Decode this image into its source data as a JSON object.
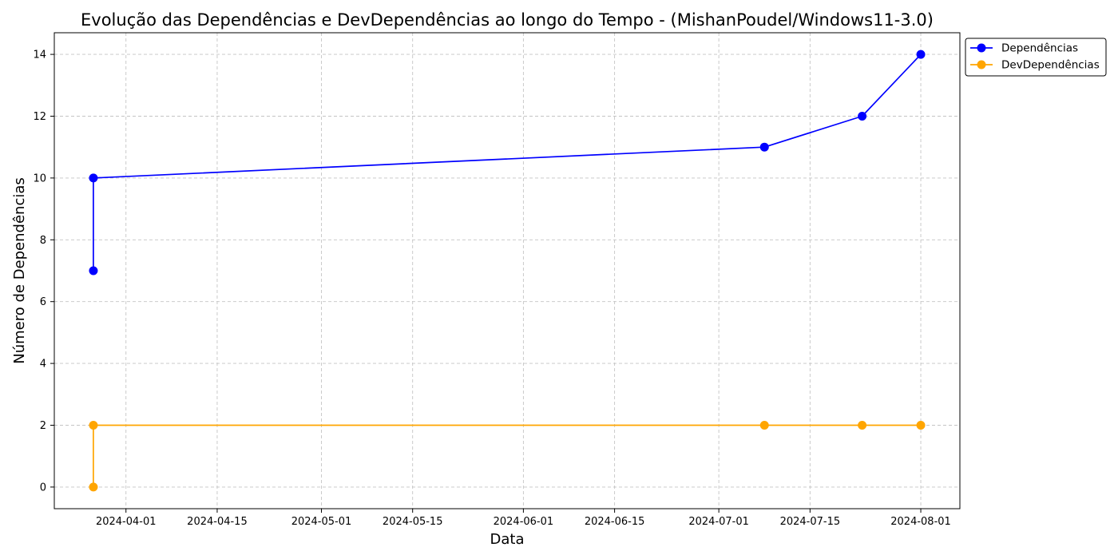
{
  "chart_data": {
    "type": "line",
    "title": "Evolução das Dependências e DevDependências ao longo do Tempo - (MishanPoudel/Windows11-3.0)",
    "xlabel": "Data",
    "ylabel": "Número de Dependências",
    "x": [
      "2024-03-27",
      "2024-03-27",
      "2024-07-08",
      "2024-07-23",
      "2024-08-01"
    ],
    "series": [
      {
        "name": "Dependências",
        "color": "#0000ff",
        "values": [
          7,
          10,
          11,
          12,
          14
        ]
      },
      {
        "name": "DevDependências",
        "color": "#ffa500",
        "values": [
          0,
          2,
          2,
          2,
          2
        ]
      }
    ],
    "x_ticks": [
      "2024-04-01",
      "2024-04-15",
      "2024-05-01",
      "2024-05-15",
      "2024-06-01",
      "2024-06-15",
      "2024-07-01",
      "2024-07-15",
      "2024-08-01"
    ],
    "y_ticks": [
      0,
      2,
      4,
      6,
      8,
      10,
      12,
      14
    ],
    "xlim": [
      "2024-03-21",
      "2024-08-07"
    ],
    "ylim": [
      -0.7,
      14.7
    ],
    "grid": true,
    "grid_style": "dashed",
    "legend_position": "outside-top-right",
    "marker": "circle"
  }
}
